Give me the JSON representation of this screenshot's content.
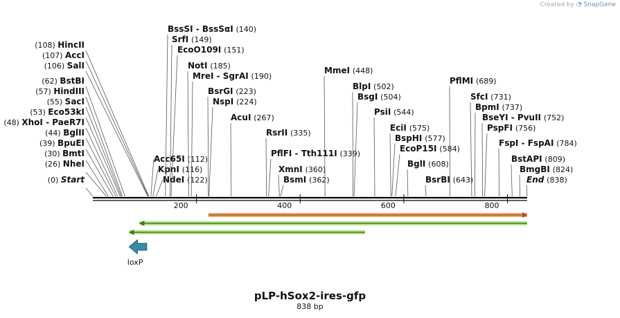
{
  "credit": {
    "prefix": "Created by",
    "brand": "SnapGene"
  },
  "title": "pLP-hSox2-ires-gfp",
  "subtitle": "838 bp",
  "sequence_length": 838,
  "ruler": {
    "ticks": [
      "200",
      "400",
      "600",
      "800"
    ]
  },
  "sites": [
    {
      "name": "Start",
      "pos": "(0)",
      "bp": 0,
      "italic": true
    },
    {
      "name": "NheI",
      "pos": "(26)",
      "bp": 26
    },
    {
      "name": "BmtI",
      "pos": "(30)",
      "bp": 30
    },
    {
      "name": "BpuEI",
      "pos": "(39)",
      "bp": 39
    },
    {
      "name": "BglII",
      "pos": "(44)",
      "bp": 44
    },
    {
      "name": "XhoI - PaeR7I",
      "pos": "(48)",
      "bp": 48
    },
    {
      "name": "Eco53kI",
      "pos": "(53)",
      "bp": 53
    },
    {
      "name": "SacI",
      "pos": "(55)",
      "bp": 55
    },
    {
      "name": "HindIII",
      "pos": "(57)",
      "bp": 57
    },
    {
      "name": "BstBI",
      "pos": "(62)",
      "bp": 62
    },
    {
      "name": "SalI",
      "pos": "(106)",
      "bp": 106
    },
    {
      "name": "AccI",
      "pos": "(107)",
      "bp": 107
    },
    {
      "name": "HincII",
      "pos": "(108)",
      "bp": 108
    },
    {
      "name": "Acc65I",
      "pos": "(112)",
      "bp": 112
    },
    {
      "name": "KpnI",
      "pos": "(116)",
      "bp": 116
    },
    {
      "name": "NdeI",
      "pos": "(122)",
      "bp": 122
    },
    {
      "name": "BssSI - BssSαI",
      "pos": "(140)",
      "bp": 140
    },
    {
      "name": "SrfI",
      "pos": "(149)",
      "bp": 149
    },
    {
      "name": "EcoO109I",
      "pos": "(151)",
      "bp": 151
    },
    {
      "name": "NotI",
      "pos": "(185)",
      "bp": 185
    },
    {
      "name": "MreI - SgrAI",
      "pos": "(190)",
      "bp": 190
    },
    {
      "name": "BsrGI",
      "pos": "(223)",
      "bp": 223
    },
    {
      "name": "NspI",
      "pos": "(224)",
      "bp": 224
    },
    {
      "name": "AcuI",
      "pos": "(267)",
      "bp": 267
    },
    {
      "name": "RsrII",
      "pos": "(335)",
      "bp": 335
    },
    {
      "name": "PflFI - Tth111I",
      "pos": "(339)",
      "bp": 339
    },
    {
      "name": "XmnI",
      "pos": "(360)",
      "bp": 360
    },
    {
      "name": "BsmI",
      "pos": "(362)",
      "bp": 362
    },
    {
      "name": "MmeI",
      "pos": "(448)",
      "bp": 448
    },
    {
      "name": "BlpI",
      "pos": "(502)",
      "bp": 502
    },
    {
      "name": "BsgI",
      "pos": "(504)",
      "bp": 504
    },
    {
      "name": "PsiI",
      "pos": "(544)",
      "bp": 544
    },
    {
      "name": "EciI",
      "pos": "(575)",
      "bp": 575
    },
    {
      "name": "BspHI",
      "pos": "(577)",
      "bp": 577
    },
    {
      "name": "EcoP15I",
      "pos": "(584)",
      "bp": 584
    },
    {
      "name": "BglI",
      "pos": "(608)",
      "bp": 608
    },
    {
      "name": "BsrBI",
      "pos": "(643)",
      "bp": 643
    },
    {
      "name": "PflMI",
      "pos": "(689)",
      "bp": 689
    },
    {
      "name": "SfcI",
      "pos": "(731)",
      "bp": 731
    },
    {
      "name": "BpmI",
      "pos": "(737)",
      "bp": 737
    },
    {
      "name": "BseYI - PvuII",
      "pos": "(752)",
      "bp": 752
    },
    {
      "name": "PspFI",
      "pos": "(756)",
      "bp": 756
    },
    {
      "name": "FspI - FspAI",
      "pos": "(784)",
      "bp": 784
    },
    {
      "name": "BstAPI",
      "pos": "(809)",
      "bp": 809
    },
    {
      "name": "BmgBI",
      "pos": "(824)",
      "bp": 824
    },
    {
      "name": "End",
      "pos": "(838)",
      "bp": 838,
      "italic": true
    }
  ],
  "features": [
    {
      "name": "orange-feature",
      "start_bp": 223,
      "end_bp": 838,
      "direction": "forward",
      "color": "#f0a868",
      "edge": "#a0522d"
    },
    {
      "name": "green-feature-1",
      "start_bp": 90,
      "end_bp": 838,
      "direction": "reverse",
      "color": "#b6e38c",
      "edge": "#3a7a1a"
    },
    {
      "name": "green-feature-2",
      "start_bp": 70,
      "end_bp": 525,
      "direction": "reverse",
      "color": "#b6e38c",
      "edge": "#3a7a1a"
    },
    {
      "name": "loxp-feature",
      "label": "loxP",
      "start_bp": 70,
      "end_bp": 104,
      "direction": "reverse",
      "color": "#3a8aa6"
    }
  ],
  "colors": {
    "backbone": "#000000",
    "leader": "#555555",
    "text": "#111111"
  }
}
